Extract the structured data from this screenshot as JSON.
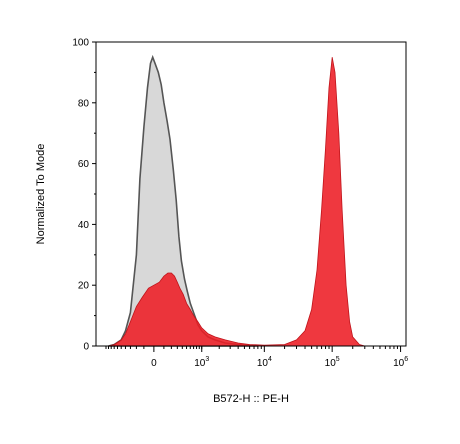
{
  "chart_data": {
    "type": "area",
    "xlabel": "B572-H :: PE-H",
    "ylabel": "Normalized To Mode",
    "x_scale": "biexponential",
    "ylim": [
      0,
      100
    ],
    "y_ticks": [
      0,
      20,
      40,
      60,
      80,
      100
    ],
    "x_ticks": [
      {
        "base": "0",
        "exp": ""
      },
      {
        "base": "10",
        "exp": "3"
      },
      {
        "base": "10",
        "exp": "4"
      },
      {
        "base": "10",
        "exp": "5"
      },
      {
        "base": "10",
        "exp": "6"
      }
    ],
    "grid": false,
    "series": [
      {
        "fill": "#d8d8d8",
        "stroke": "#555555",
        "points": [
          [
            -900,
            0
          ],
          [
            -700,
            0.5
          ],
          [
            -500,
            2
          ],
          [
            -400,
            5
          ],
          [
            -300,
            11
          ],
          [
            -200,
            30
          ],
          [
            -150,
            55
          ],
          [
            -100,
            72
          ],
          [
            -60,
            85
          ],
          [
            -30,
            93
          ],
          [
            -10,
            95
          ],
          [
            10,
            93
          ],
          [
            40,
            90
          ],
          [
            70,
            86
          ],
          [
            100,
            80
          ],
          [
            140,
            74
          ],
          [
            180,
            68
          ],
          [
            230,
            58
          ],
          [
            280,
            48
          ],
          [
            330,
            36
          ],
          [
            380,
            28
          ],
          [
            450,
            22
          ],
          [
            520,
            18
          ],
          [
            600,
            14
          ],
          [
            700,
            11
          ],
          [
            850,
            7
          ],
          [
            1000,
            5
          ],
          [
            1300,
            3
          ],
          [
            1700,
            2
          ],
          [
            2500,
            1
          ],
          [
            4000,
            0.5
          ],
          [
            8000,
            0
          ]
        ]
      },
      {
        "fill": "#ed1c24",
        "stroke": "#c0141b",
        "points": [
          [
            -900,
            0
          ],
          [
            -700,
            0.5
          ],
          [
            -500,
            2
          ],
          [
            -400,
            4
          ],
          [
            -300,
            8
          ],
          [
            -200,
            13
          ],
          [
            -120,
            16
          ],
          [
            -50,
            19
          ],
          [
            0,
            20
          ],
          [
            50,
            21
          ],
          [
            100,
            23
          ],
          [
            150,
            24
          ],
          [
            200,
            24
          ],
          [
            250,
            23
          ],
          [
            300,
            21
          ],
          [
            350,
            19
          ],
          [
            420,
            17
          ],
          [
            500,
            14
          ],
          [
            600,
            12
          ],
          [
            700,
            10
          ],
          [
            850,
            8
          ],
          [
            1000,
            6
          ],
          [
            1300,
            4
          ],
          [
            1700,
            3
          ],
          [
            2500,
            2
          ],
          [
            4000,
            1
          ],
          [
            6000,
            0.5
          ],
          [
            10000,
            0.3
          ],
          [
            20000,
            0.5
          ],
          [
            30000,
            2
          ],
          [
            40000,
            5
          ],
          [
            50000,
            12
          ],
          [
            60000,
            25
          ],
          [
            70000,
            45
          ],
          [
            80000,
            65
          ],
          [
            90000,
            85
          ],
          [
            100000,
            95
          ],
          [
            110000,
            90
          ],
          [
            125000,
            70
          ],
          [
            140000,
            45
          ],
          [
            160000,
            20
          ],
          [
            180000,
            8
          ],
          [
            200000,
            3
          ],
          [
            250000,
            0.5
          ],
          [
            300000,
            0
          ]
        ]
      }
    ]
  }
}
